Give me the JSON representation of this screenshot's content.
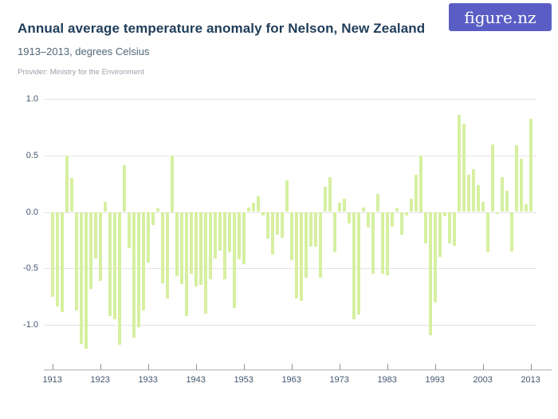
{
  "header": {
    "title": "Annual average temperature anomaly for Nelson, New Zealand",
    "subtitle": "1913–2013, degrees Celsius",
    "provider": "Provider: Ministry for the Environment",
    "logo_text": "figure.nz"
  },
  "colors": {
    "bar": "#d6f0a0",
    "title_text": "#1f3d5a",
    "subtitle_text": "#4f6875",
    "provider_text": "#98a2ac",
    "axis_label": "#42566e",
    "gridline": "#e4e4e8",
    "axis_line": "#a8b1b8",
    "logo_bg": "#5a5ec4"
  },
  "chart_data": {
    "type": "bar",
    "title": "Annual average temperature anomaly for Nelson, New Zealand",
    "subtitle": "1913–2013, degrees Celsius",
    "xlabel": "",
    "ylabel": "degrees Celsius",
    "grid": true,
    "legend": false,
    "bar_color": "#d6f0a0",
    "ylim": [
      -1.4,
      1.0
    ],
    "yticks": [
      1.0,
      0.5,
      0.0,
      -0.5,
      -1.0
    ],
    "xticks": [
      1913,
      1923,
      1933,
      1943,
      1953,
      1963,
      1973,
      1983,
      1993,
      2003,
      2013
    ],
    "x": [
      1913,
      1914,
      1915,
      1916,
      1917,
      1918,
      1919,
      1920,
      1921,
      1922,
      1923,
      1924,
      1925,
      1926,
      1927,
      1928,
      1929,
      1930,
      1931,
      1932,
      1933,
      1934,
      1935,
      1936,
      1937,
      1938,
      1939,
      1940,
      1941,
      1942,
      1943,
      1944,
      1945,
      1946,
      1947,
      1948,
      1949,
      1950,
      1951,
      1952,
      1953,
      1954,
      1955,
      1956,
      1957,
      1958,
      1959,
      1960,
      1961,
      1962,
      1963,
      1964,
      1965,
      1966,
      1967,
      1968,
      1969,
      1970,
      1971,
      1972,
      1973,
      1974,
      1975,
      1976,
      1977,
      1978,
      1979,
      1980,
      1981,
      1982,
      1983,
      1984,
      1985,
      1986,
      1987,
      1988,
      1989,
      1990,
      1991,
      1992,
      1993,
      1994,
      1995,
      1996,
      1997,
      1998,
      1999,
      2000,
      2001,
      2002,
      2003,
      2004,
      2005,
      2006,
      2007,
      2008,
      2009,
      2010,
      2011,
      2012,
      2013
    ],
    "values": [
      -0.75,
      -0.84,
      -0.89,
      0.5,
      0.3,
      -0.87,
      -1.17,
      -1.21,
      -0.68,
      -0.41,
      -0.61,
      0.09,
      -0.92,
      -0.95,
      -1.18,
      0.41,
      -0.32,
      -1.11,
      -1.02,
      -0.87,
      -0.45,
      -0.12,
      0.03,
      -0.63,
      -0.77,
      0.5,
      -0.57,
      -0.64,
      -0.92,
      -0.55,
      -0.66,
      -0.65,
      -0.9,
      -0.6,
      -0.41,
      -0.34,
      -0.6,
      -0.36,
      -0.85,
      -0.42,
      -0.46,
      0.04,
      0.08,
      0.14,
      -0.03,
      -0.24,
      -0.38,
      -0.2,
      -0.23,
      0.28,
      -0.43,
      -0.77,
      -0.79,
      -0.58,
      -0.31,
      -0.31,
      -0.58,
      0.22,
      0.31,
      -0.36,
      0.08,
      0.12,
      -0.1,
      -0.95,
      -0.91,
      0.04,
      -0.14,
      -0.55,
      0.16,
      -0.55,
      -0.56,
      -0.13,
      0.03,
      -0.2,
      -0.03,
      0.12,
      0.33,
      0.5,
      -0.28,
      -1.09,
      -0.8,
      -0.4,
      -0.04,
      -0.28,
      -0.3,
      0.86,
      0.78,
      0.33,
      0.38,
      0.24,
      0.09,
      -0.36,
      0.6,
      -0.02,
      0.31,
      0.19,
      -0.35,
      0.59,
      0.47,
      0.07,
      0.82
    ]
  }
}
